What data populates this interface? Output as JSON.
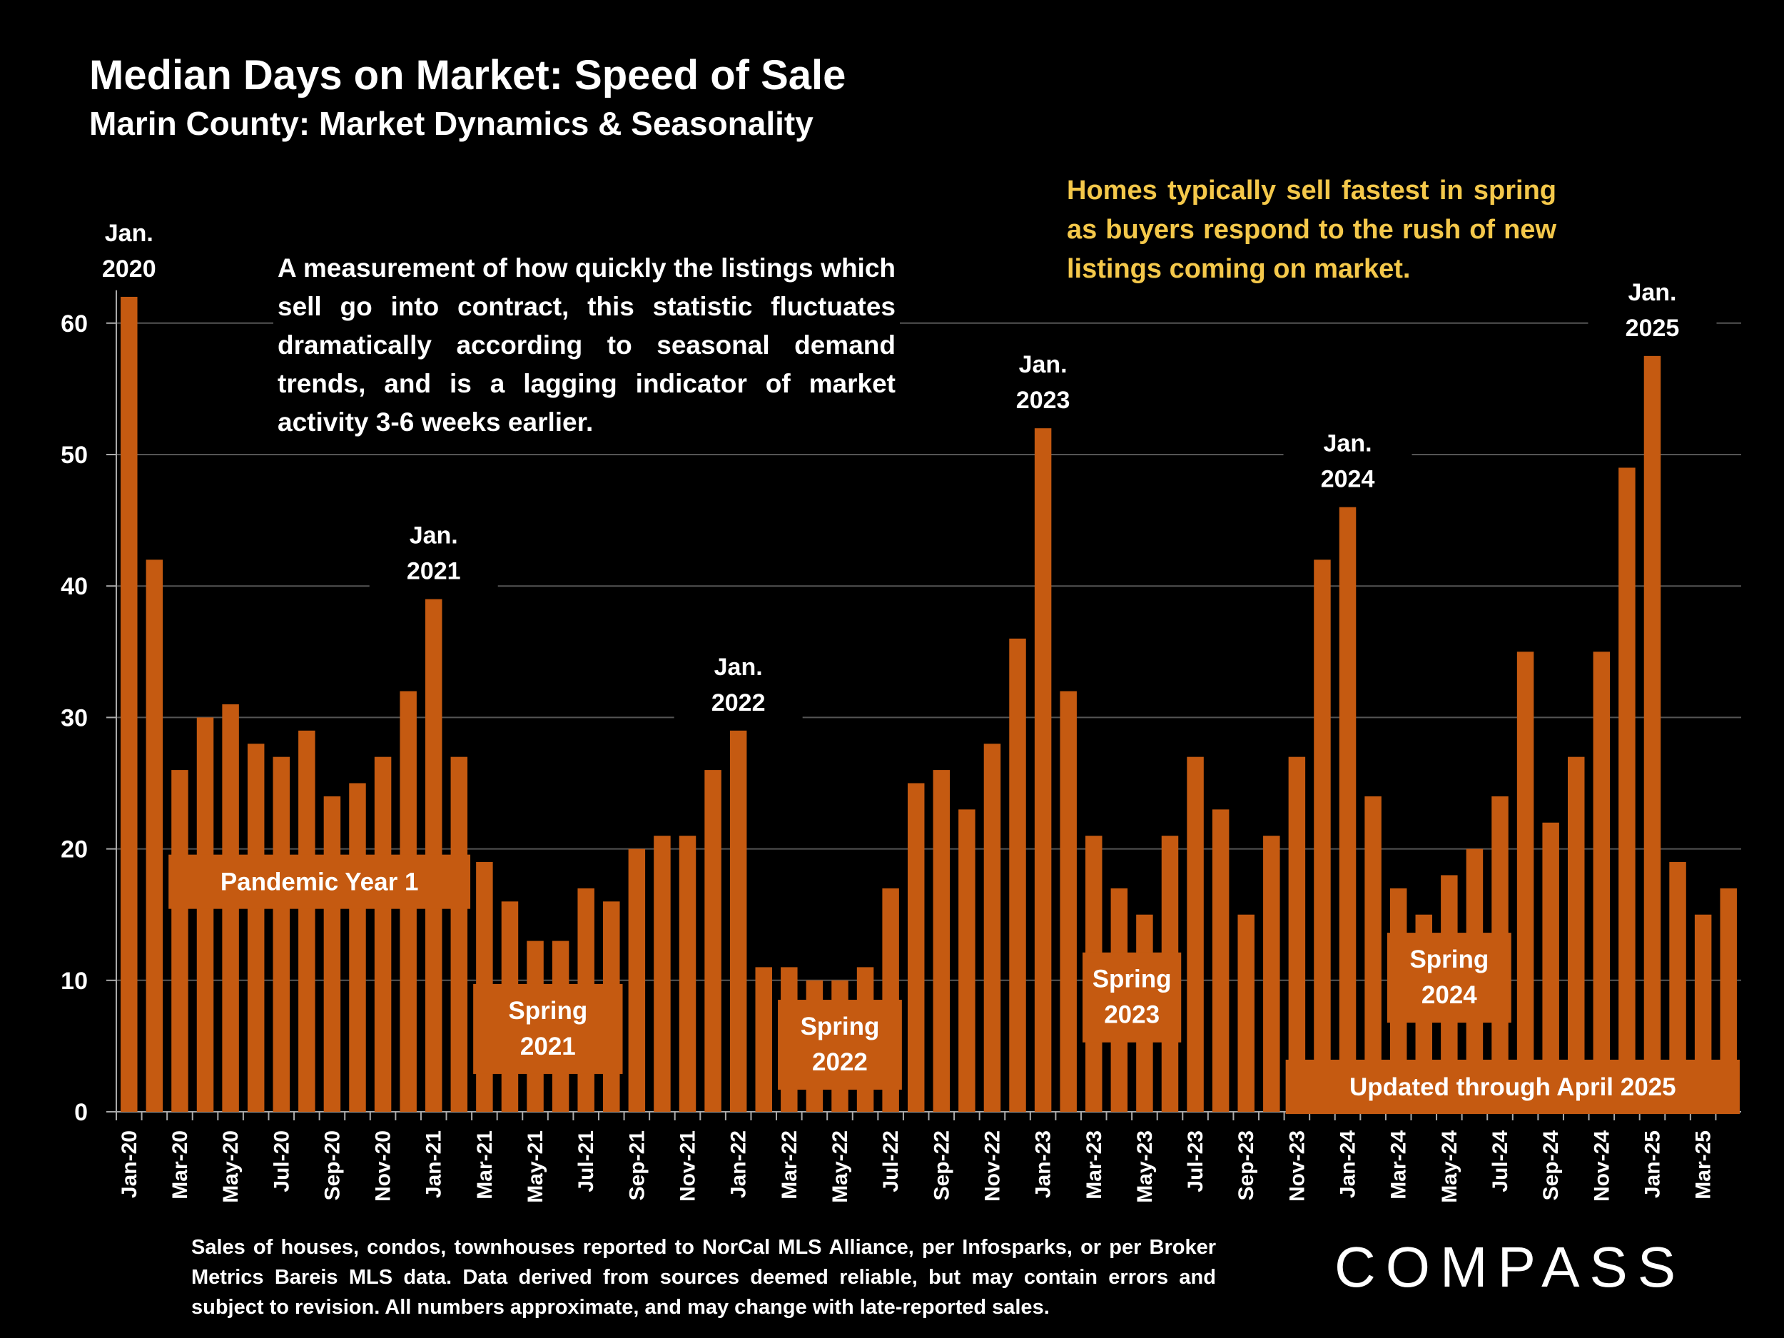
{
  "title": "Median Days on Market:  Speed of Sale",
  "subtitle": "Marin County: Market Dynamics & Seasonality",
  "description": "A measurement of how quickly the listings which sell go into contract, this statistic fluctuates dramatically according to seasonal demand trends, and is a lagging indicator of market activity 3-6 weeks earlier.",
  "note": "Homes typically sell fastest in spring as buyers respond to the rush of new listings coming on market.",
  "footnote": "Sales of houses, condos, townhouses reported to NorCal MLS Alliance, per Infosparks, or per Broker Metrics Bareis MLS data. Data derived from sources deemed reliable, but may contain errors and subject to revision. All numbers approximate, and may change with late-reported sales.",
  "logo": "COMPASS",
  "colors": {
    "bar": "#c55a11",
    "note": "#f4c84a",
    "background": "#000000",
    "grid": "#555555"
  },
  "chart_data": {
    "type": "bar",
    "title": "Median Days on Market:  Speed of Sale",
    "ylim": [
      0,
      62
    ],
    "yticks": [
      0,
      10,
      20,
      30,
      40,
      50,
      60
    ],
    "categories": [
      "Jan-20",
      "Feb-20",
      "Mar-20",
      "Apr-20",
      "May-20",
      "Jun-20",
      "Jul-20",
      "Aug-20",
      "Sep-20",
      "Oct-20",
      "Nov-20",
      "Dec-20",
      "Jan-21",
      "Feb-21",
      "Mar-21",
      "Apr-21",
      "May-21",
      "Jun-21",
      "Jul-21",
      "Aug-21",
      "Sep-21",
      "Oct-21",
      "Nov-21",
      "Dec-21",
      "Jan-22",
      "Feb-22",
      "Mar-22",
      "Apr-22",
      "May-22",
      "Jun-22",
      "Jul-22",
      "Aug-22",
      "Sep-22",
      "Oct-22",
      "Nov-22",
      "Dec-22",
      "Jan-23",
      "Feb-23",
      "Mar-23",
      "Apr-23",
      "May-23",
      "Jun-23",
      "Jul-23",
      "Aug-23",
      "Sep-23",
      "Oct-23",
      "Nov-23",
      "Dec-23",
      "Jan-24",
      "Feb-24",
      "Mar-24",
      "Apr-24",
      "May-24",
      "Jun-24",
      "Jul-24",
      "Aug-24",
      "Sep-24",
      "Oct-24",
      "Nov-24",
      "Dec-24",
      "Jan-25",
      "Feb-25",
      "Mar-25",
      "Apr-25"
    ],
    "values": [
      62,
      42,
      26,
      30,
      31,
      28,
      27,
      29,
      24,
      25,
      27,
      32,
      39,
      27,
      19,
      16,
      13,
      13,
      17,
      16,
      20,
      21,
      21,
      26,
      29,
      11,
      11,
      10,
      10,
      11,
      17,
      25,
      26,
      23,
      28,
      36,
      52,
      32,
      21,
      17,
      15,
      21,
      27,
      23,
      15,
      21,
      27,
      42,
      46,
      24,
      17,
      15,
      18,
      20,
      24,
      35,
      22,
      27,
      35,
      49,
      57.5,
      19,
      15,
      17
    ],
    "x_tick_labels": [
      "Jan-20",
      "Mar-20",
      "May-20",
      "Jul-20",
      "Sep-20",
      "Nov-20",
      "Jan-21",
      "Mar-21",
      "May-21",
      "Jul-21",
      "Sep-21",
      "Nov-21",
      "Jan-22",
      "Mar-22",
      "May-22",
      "Jul-22",
      "Sep-22",
      "Nov-22",
      "Jan-23",
      "Mar-23",
      "May-23",
      "Jul-23",
      "Sep-23",
      "Nov-23",
      "Jan-24",
      "Mar-24",
      "May-24",
      "Jul-24",
      "Sep-24",
      "Nov-24",
      "Jan-25",
      "Mar-25"
    ],
    "peak_annotations": [
      {
        "index": 0,
        "line1": "Jan.",
        "line2": "2020"
      },
      {
        "index": 12,
        "line1": "Jan.",
        "line2": "2021"
      },
      {
        "index": 24,
        "line1": "Jan.",
        "line2": "2022"
      },
      {
        "index": 36,
        "line1": "Jan.",
        "line2": "2023"
      },
      {
        "index": 48,
        "line1": "Jan.",
        "line2": "2024"
      },
      {
        "index": 60,
        "line1": "Jan.",
        "line2": "2025"
      }
    ],
    "period_labels": [
      {
        "lines": [
          "Pandemic Year 1"
        ],
        "from_index": 2,
        "to_index": 13,
        "at_value": 17.5
      },
      {
        "lines": [
          "Spring",
          "2021"
        ],
        "from_index": 14,
        "to_index": 19,
        "at_value": 6.3
      },
      {
        "lines": [
          "Spring",
          "2022"
        ],
        "from_index": 26,
        "to_index": 30,
        "at_value": 5.1
      },
      {
        "lines": [
          "Spring",
          "2023"
        ],
        "from_index": 38,
        "to_index": 41,
        "at_value": 8.7
      },
      {
        "lines": [
          "Spring",
          "2024"
        ],
        "from_index": 50,
        "to_index": 54,
        "at_value": 10.2
      },
      {
        "lines": [
          "Updated through April 2025"
        ],
        "from_index": 46,
        "to_index": 63,
        "at_value": 1.9
      }
    ]
  }
}
